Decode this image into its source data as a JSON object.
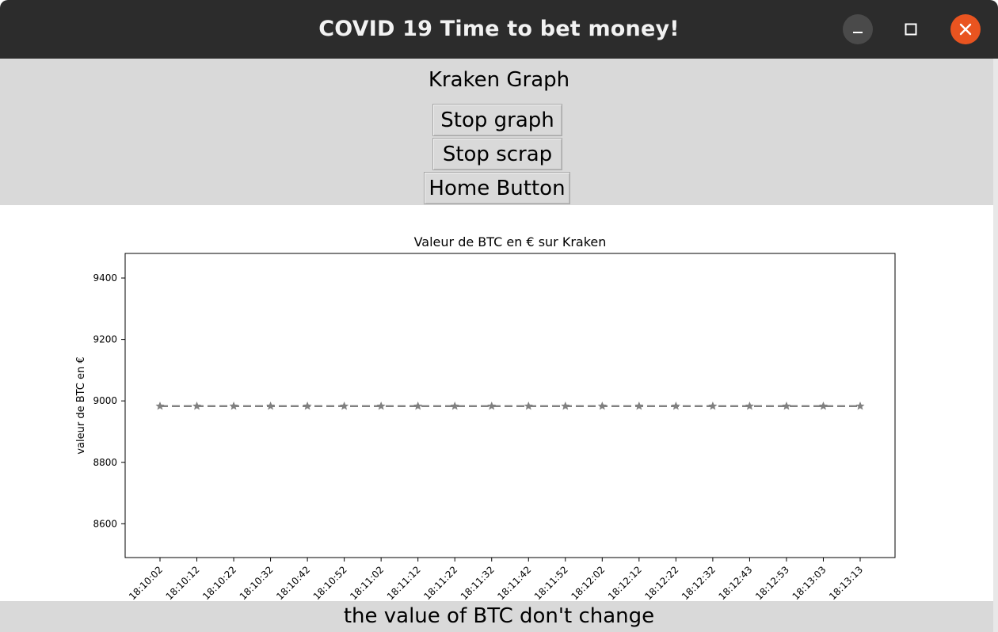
{
  "window": {
    "title": "COVID 19 Time to bet money!",
    "controls": {
      "minimize": "minimize-icon",
      "maximize": "maximize-icon",
      "close": "close-icon"
    },
    "accent_close": "#e95420"
  },
  "header": {
    "heading": "Kraken Graph",
    "buttons": {
      "stop_graph": "Stop graph",
      "stop_scrap": "Stop scrap",
      "home": "Home Button"
    }
  },
  "chart_data": {
    "type": "line",
    "title": "Valeur de BTC en € sur Kraken",
    "xlabel": "",
    "ylabel": "valeur de BTC en €",
    "categories": [
      "18:10:02",
      "18:10:12",
      "18:10:22",
      "18:10:32",
      "18:10:42",
      "18:10:52",
      "18:11:02",
      "18:11:12",
      "18:11:22",
      "18:11:32",
      "18:11:42",
      "18:11:52",
      "18:12:02",
      "18:12:12",
      "18:12:22",
      "18:12:32",
      "18:12:43",
      "18:12:53",
      "18:13:03",
      "18:13:13"
    ],
    "series": [
      {
        "values": [
          8983,
          8983,
          8983,
          8983,
          8983,
          8983,
          8983,
          8983,
          8983,
          8983,
          8983,
          8983,
          8983,
          8983,
          8983,
          8983,
          8983,
          8983,
          8983,
          8983
        ],
        "color": "#808080",
        "line_style": "dashed",
        "marker": "star"
      }
    ],
    "yticks": [
      8600,
      8800,
      9000,
      9200,
      9400
    ],
    "ylim": [
      8490,
      9480
    ],
    "grid": false,
    "xtick_rotation": "45"
  },
  "footer": {
    "message": "the value of BTC don't change"
  }
}
